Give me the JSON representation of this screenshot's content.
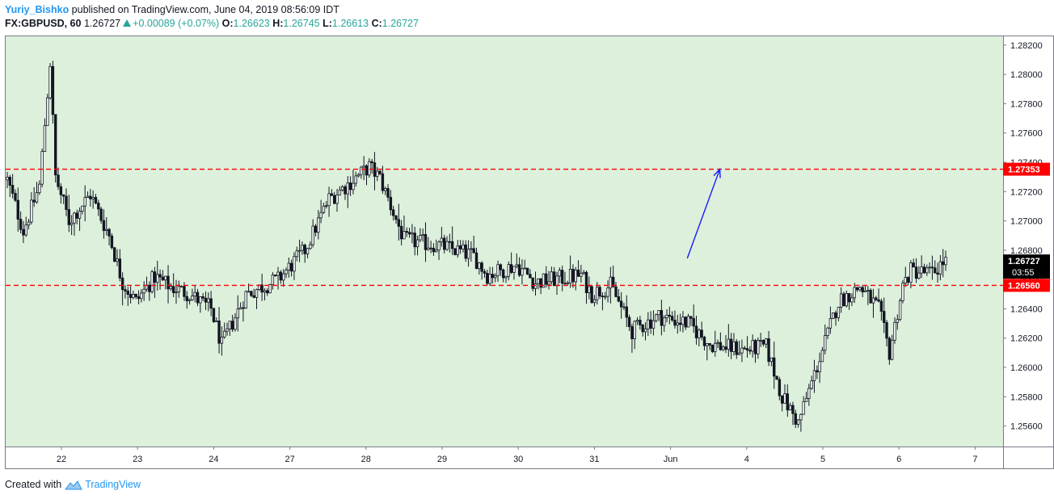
{
  "header": {
    "author": "Yuriy_Bishko",
    "published": " published on TradingView.com, June 04, 2019 08:56:09 IDT"
  },
  "ticker": {
    "symbol": "FX:GBPUSD, 60",
    "last": "1.26727",
    "change": "+0.00089 (+0.07%)",
    "o_label": "O:",
    "o_value": "1.26623",
    "h_label": "H:",
    "h_value": "1.26745",
    "l_label": "L:",
    "l_value": "1.26613",
    "c_label": "C:",
    "c_value": "1.26727"
  },
  "footer": {
    "created_with": "Created with",
    "brand": "TradingView"
  },
  "colors": {
    "background": "#dcf0dc",
    "candle": "#131722",
    "support_resistance": "#ff0000",
    "arrow": "#1a1aff",
    "price_tag": "#000000",
    "level_tag": "#ff0000"
  },
  "chart_data": {
    "type": "candlestick",
    "title": "",
    "ylim": [
      1.2546,
      1.2826
    ],
    "y_ticks": [
      "1.28200",
      "1.28000",
      "1.27800",
      "1.27600",
      "1.27400",
      "1.27200",
      "1.27000",
      "1.26800",
      "1.26600",
      "1.26400",
      "1.26200",
      "1.26000",
      "1.25800",
      "1.25600"
    ],
    "x_ticks": [
      "22",
      "23",
      "24",
      "27",
      "28",
      "29",
      "30",
      "31",
      "Jun",
      "4",
      "5",
      "6",
      "7"
    ],
    "horizontal_levels": [
      {
        "value": 1.27353,
        "label": "1.27353",
        "style": "dashed"
      },
      {
        "value": 1.2656,
        "label": "1.26560",
        "style": "dashed"
      }
    ],
    "current_price": {
      "value": 1.26727,
      "label": "1.26727",
      "countdown": "03:55"
    },
    "projection_arrow": {
      "from": {
        "bar": 250,
        "price": 1.26745
      },
      "to": {
        "bar": 257,
        "price": 1.27353
      }
    },
    "path_points": [
      [
        0,
        1.2728
      ],
      [
        6,
        1.2693
      ],
      [
        12,
        1.2724
      ],
      [
        16,
        1.2808
      ],
      [
        18,
        1.273
      ],
      [
        23,
        1.27
      ],
      [
        31,
        1.2718
      ],
      [
        38,
        1.269
      ],
      [
        43,
        1.2658
      ],
      [
        48,
        1.2645
      ],
      [
        55,
        1.2662
      ],
      [
        61,
        1.2655
      ],
      [
        68,
        1.265
      ],
      [
        76,
        1.264
      ],
      [
        80,
        1.2615
      ],
      [
        89,
        1.265
      ],
      [
        101,
        1.266
      ],
      [
        111,
        1.268
      ],
      [
        120,
        1.2715
      ],
      [
        127,
        1.2725
      ],
      [
        135,
        1.2737
      ],
      [
        139,
        1.2729
      ],
      [
        148,
        1.2687
      ],
      [
        162,
        1.2683
      ],
      [
        174,
        1.2676
      ],
      [
        179,
        1.2663
      ],
      [
        190,
        1.267
      ],
      [
        197,
        1.2658
      ],
      [
        214,
        1.2663
      ],
      [
        218,
        1.265
      ],
      [
        225,
        1.2656
      ],
      [
        233,
        1.2625
      ],
      [
        243,
        1.2635
      ],
      [
        254,
        1.263
      ],
      [
        262,
        1.2616
      ],
      [
        274,
        1.2612
      ],
      [
        283,
        1.2614
      ],
      [
        289,
        1.258
      ],
      [
        295,
        1.2562
      ],
      [
        310,
        1.2645
      ],
      [
        318,
        1.2655
      ],
      [
        325,
        1.264
      ],
      [
        329,
        1.261
      ],
      [
        334,
        1.2656
      ],
      [
        337,
        1.2666
      ],
      [
        345,
        1.2664
      ],
      [
        349,
        1.2672
      ]
    ],
    "bar_count": 350
  }
}
